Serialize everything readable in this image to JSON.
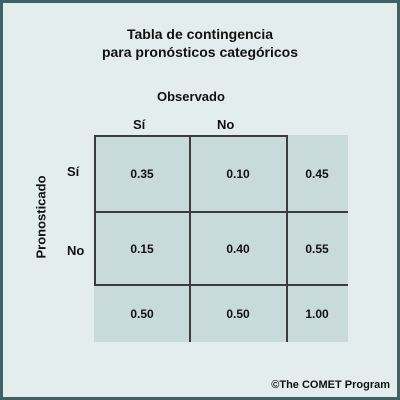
{
  "title": {
    "line1": "Tabla de contingencia",
    "line2": "para pronósticos categóricos"
  },
  "axes": {
    "observed": "Observado",
    "forecast": "Pronosticado"
  },
  "columns": [
    "Sí",
    "No"
  ],
  "rows": [
    {
      "label": "Sí",
      "cells": [
        "0.35",
        "0.10",
        "0.45"
      ]
    },
    {
      "label": "No",
      "cells": [
        "0.15",
        "0.40",
        "0.55"
      ]
    },
    {
      "label": "",
      "cells": [
        "0.50",
        "0.50",
        "1.00"
      ]
    }
  ],
  "credit": "©The COMET Program",
  "colors": {
    "frame": "#3f6161",
    "background": "#e3eded",
    "cell": "#c9dada",
    "grid": "#3c3c3c"
  }
}
